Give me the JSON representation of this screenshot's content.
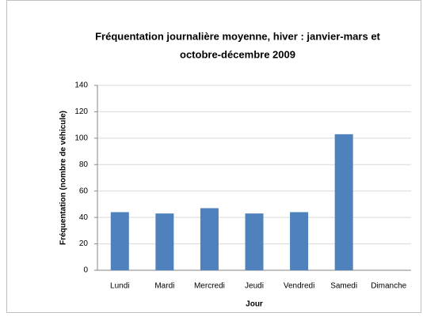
{
  "chart_data": {
    "type": "bar",
    "title": [
      "Fréquentation journalière moyenne, hiver : janvier-mars et",
      "octobre-décembre 2009"
    ],
    "x_label": "Jour",
    "y_label": "Fréquentation (nombre de véhicule)",
    "categories": [
      "Lundi",
      "Mardi",
      "Mercredi",
      "Jeudi",
      "Vendredi",
      "Samedi",
      "Dimanche"
    ],
    "values": [
      44,
      43,
      47,
      43,
      44,
      103,
      0
    ],
    "color": "#4f81bd",
    "ylim": [
      0,
      140
    ],
    "yticks": [
      0,
      20,
      40,
      60,
      80,
      100,
      120,
      140
    ],
    "grid": true
  }
}
